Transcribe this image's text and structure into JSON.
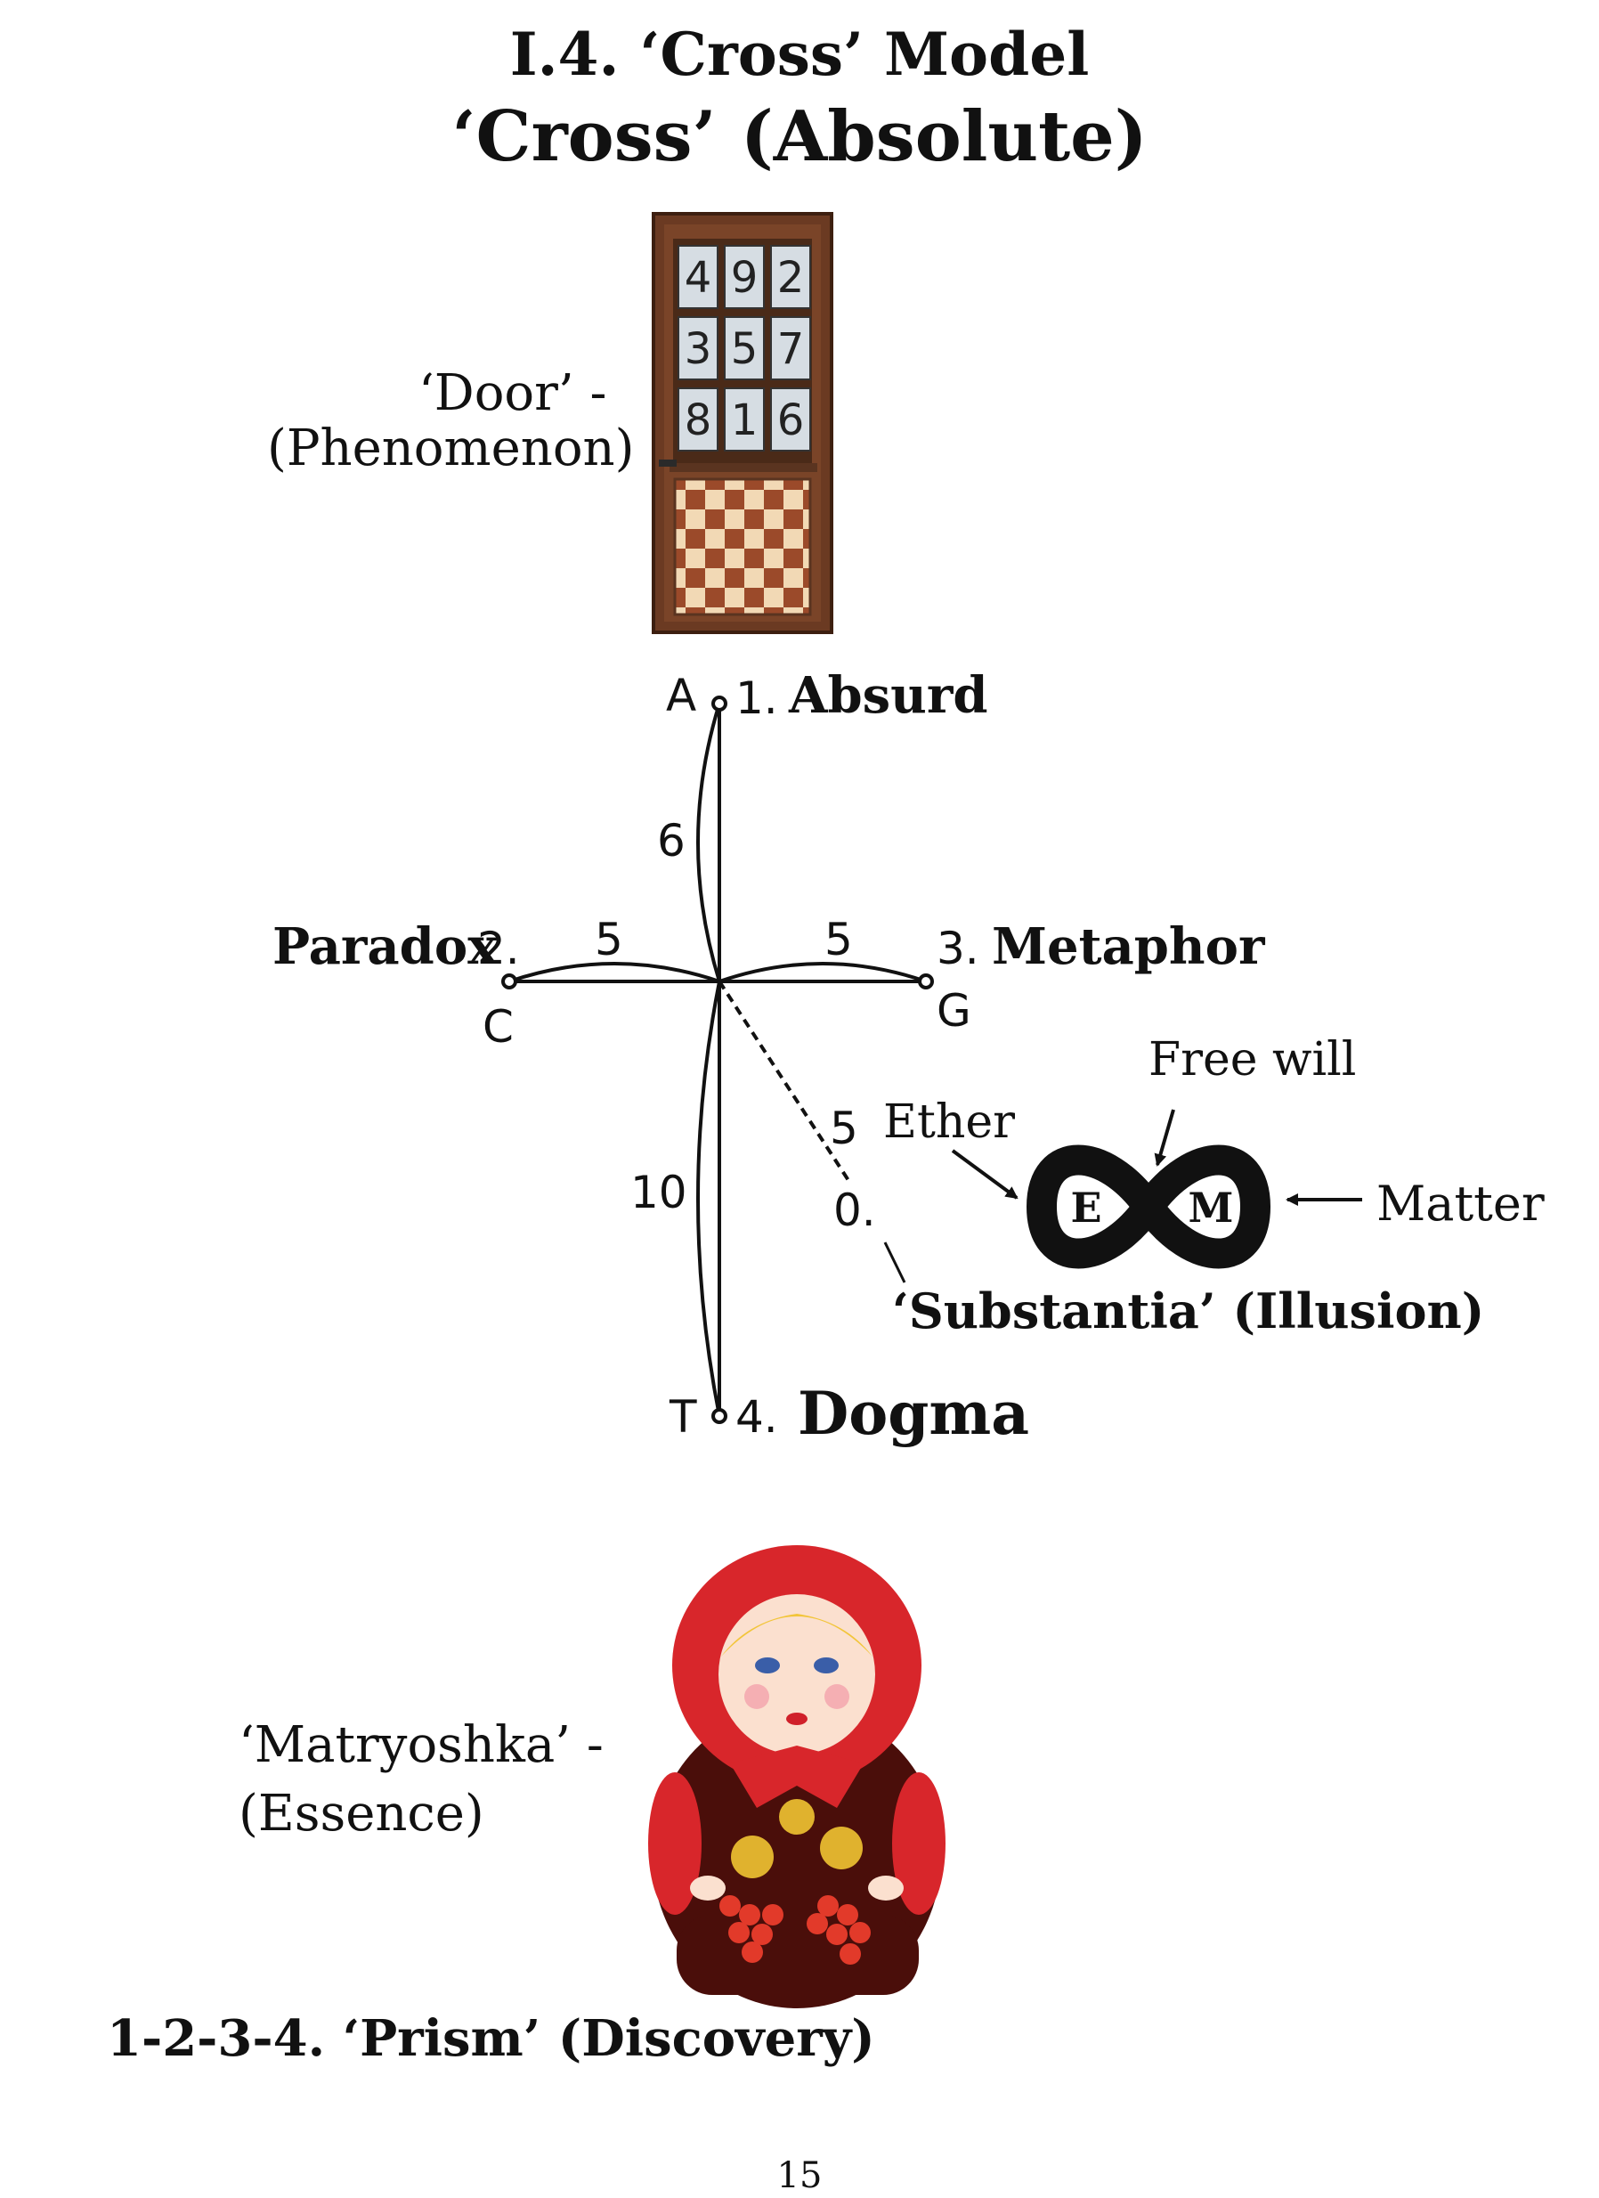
{
  "title": "I.4. ‘Cross’ Model",
  "subtitle": "‘Cross’ (Absolute)",
  "door": {
    "label_line1": "‘Door’ -",
    "label_line2": "(Phenomenon)",
    "magic_square": [
      "4",
      "9",
      "2",
      "3",
      "5",
      "7",
      "8",
      "1",
      "6"
    ]
  },
  "cross": {
    "top": {
      "letter": "A",
      "number": "1.",
      "word": "Absurd"
    },
    "left": {
      "word": "Paradox",
      "number": "2.",
      "letter": "C"
    },
    "right": {
      "number": "3.",
      "word": "Metaphor",
      "letter": "G"
    },
    "bottom": {
      "letter": "T",
      "number": "4.",
      "word": "Dogma"
    },
    "arc_top_value": "6",
    "arc_left_value": "5",
    "arc_right_value": "5",
    "arc_bottom_value": "10",
    "diagonal_value": "5",
    "zero_label": "0.",
    "substantia_label": "‘Substantia’ (Illusion)"
  },
  "infinity": {
    "left_letter": "E",
    "right_letter": "M",
    "ether_label": "Ether",
    "free_will_label": "Free will",
    "matter_label": "Matter"
  },
  "matryoshka": {
    "label_line1": "‘Matryoshka’ -",
    "label_line2": "(Essence)"
  },
  "prism_caption": "1-2-3-4. ‘Prism’ (Discovery)",
  "page_number": "15"
}
